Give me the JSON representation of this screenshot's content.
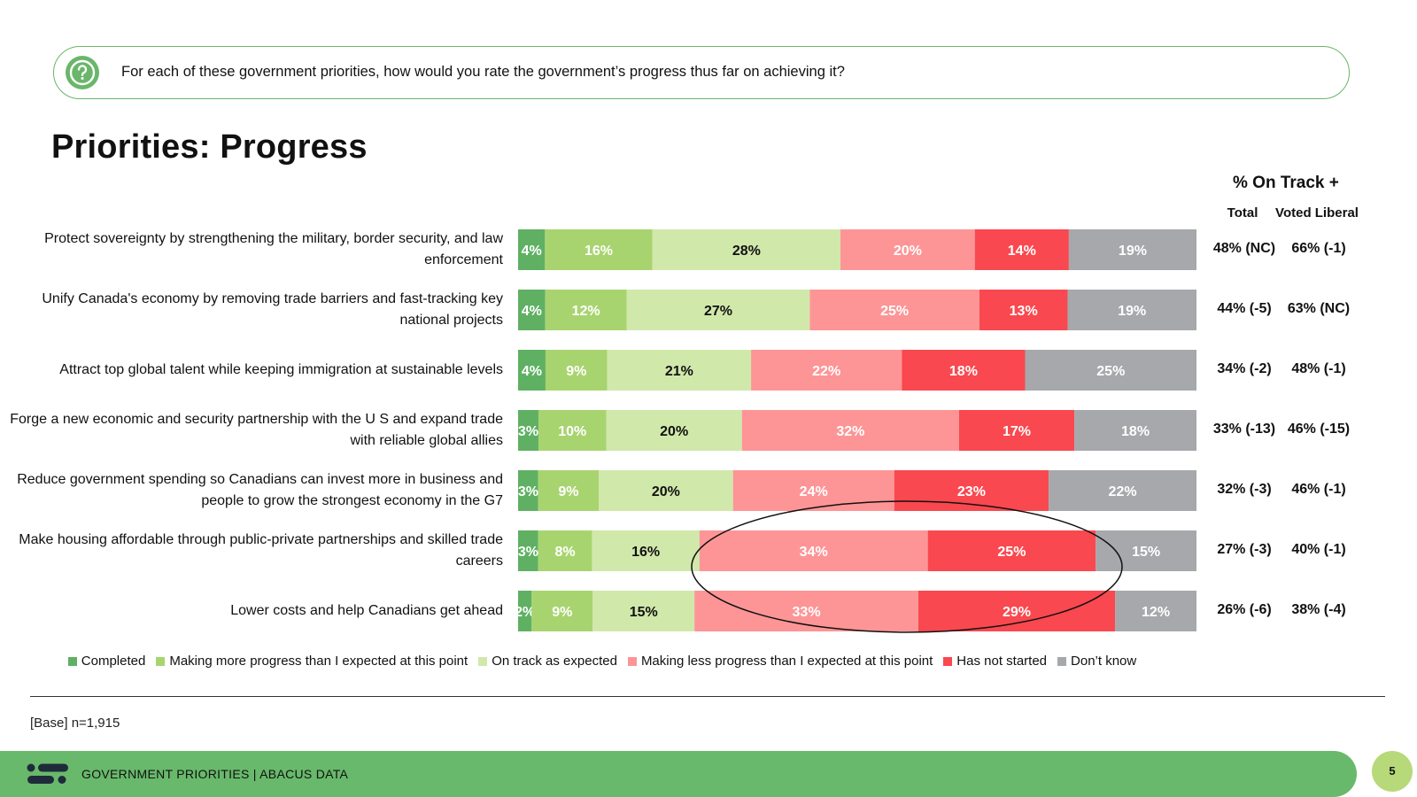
{
  "question": "For each of these government priorities, how would you rate the government’s progress thus far on achieving it?",
  "title": "Priorities: Progress",
  "right_header": "% On Track +",
  "col_total": "Total",
  "col_liberal": "Voted Liberal",
  "base_note": "[Base] n=1,915",
  "footer": "GOVERNMENT PRIORITIES |  ABACUS DATA",
  "page_number": "5",
  "icons": {
    "question": "question-circle-icon",
    "logo": "abacus-logo-icon"
  },
  "chart_data": {
    "type": "bar",
    "orientation": "horizontal",
    "stacked": true,
    "categories": [
      "Protect sovereignty by strengthening the military, border security, and law enforcement",
      "Unify Canada's economy by removing trade barriers and fast-tracking key national projects",
      "Attract top global talent while keeping immigration at sustainable levels",
      "Forge a new economic and security partnership with the U S  and expand trade with reliable global allies",
      "Reduce government spending so Canadians can invest more in business and people to grow the strongest economy in the G7",
      "Make housing affordable through public-private partnerships and skilled trade careers",
      "Lower costs and help Canadians get ahead"
    ],
    "series": [
      {
        "name": "Completed",
        "color": "#5fb063",
        "label_color": "#ffffff",
        "values": [
          4,
          4,
          4,
          3,
          3,
          3,
          2
        ]
      },
      {
        "name": "Making more progress than I expected at this point",
        "color": "#a8d46f",
        "label_color": "#ffffff",
        "values": [
          16,
          12,
          9,
          10,
          9,
          8,
          9
        ]
      },
      {
        "name": "On track as expected",
        "color": "#d1e8ab",
        "label_color": "#111111",
        "values": [
          28,
          27,
          21,
          20,
          20,
          16,
          15
        ]
      },
      {
        "name": "Making less progress than I expected at this point",
        "color": "#fd9596",
        "label_color": "#ffffff",
        "values": [
          20,
          25,
          22,
          32,
          24,
          34,
          33
        ]
      },
      {
        "name": "Has not started",
        "color": "#f9484f",
        "label_color": "#ffffff",
        "values": [
          14,
          13,
          18,
          17,
          23,
          25,
          29
        ]
      },
      {
        "name": "Don’t know",
        "color": "#a6a8ab",
        "label_color": "#ffffff",
        "values": [
          19,
          19,
          25,
          18,
          22,
          15,
          12
        ]
      }
    ],
    "on_track_total": [
      "48% (NC)",
      "44% (-5)",
      "34% (-2)",
      "33% (-13)",
      "32% (-3)",
      "27% (-3)",
      "26% (-6)"
    ],
    "on_track_liberal": [
      "66% (-1)",
      "63% (NC)",
      "48% (-1)",
      "46% (-15)",
      "46% (-1)",
      "40% (-1)",
      "38% (-4)"
    ],
    "highlight": "ellipse around 'Making less progress' and 'Has not started' for the last two priorities",
    "legend_position": "bottom",
    "grid": false
  }
}
